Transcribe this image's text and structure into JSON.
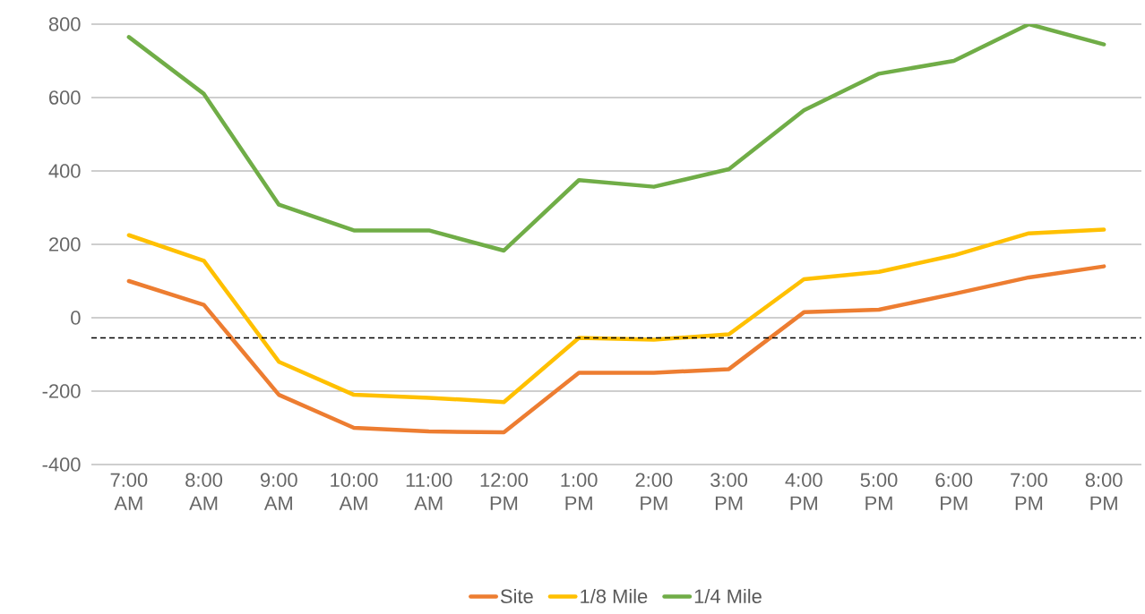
{
  "chart_data": {
    "type": "line",
    "categories": [
      "7:00 AM",
      "8:00 AM",
      "9:00 AM",
      "10:00 AM",
      "11:00 AM",
      "12:00 PM",
      "1:00 PM",
      "2:00 PM",
      "3:00 PM",
      "4:00 PM",
      "5:00 PM",
      "6:00 PM",
      "7:00 PM",
      "8:00 PM"
    ],
    "series": [
      {
        "name": "Site",
        "color": "#ed7d31",
        "values": [
          100,
          35,
          -210,
          -300,
          -310,
          -312,
          -150,
          -150,
          -140,
          15,
          22,
          65,
          110,
          140
        ]
      },
      {
        "name": "1/8 Mile",
        "color": "#ffc000",
        "values": [
          225,
          155,
          -120,
          -210,
          -218,
          -230,
          -55,
          -60,
          -45,
          105,
          125,
          170,
          230,
          240
        ]
      },
      {
        "name": "1/4 Mile",
        "color": "#70ad47",
        "values": [
          765,
          610,
          308,
          238,
          238,
          183,
          375,
          357,
          405,
          565,
          665,
          700,
          800,
          745
        ]
      }
    ],
    "ylim": [
      -400,
      800
    ],
    "yticks": [
      -400,
      -200,
      0,
      200,
      400,
      600,
      800
    ],
    "grid": "y",
    "legend": "bottom",
    "ref_lines": [
      {
        "axis": "y",
        "value": -55,
        "color": "#000000",
        "line_style": "dashed"
      }
    ]
  }
}
